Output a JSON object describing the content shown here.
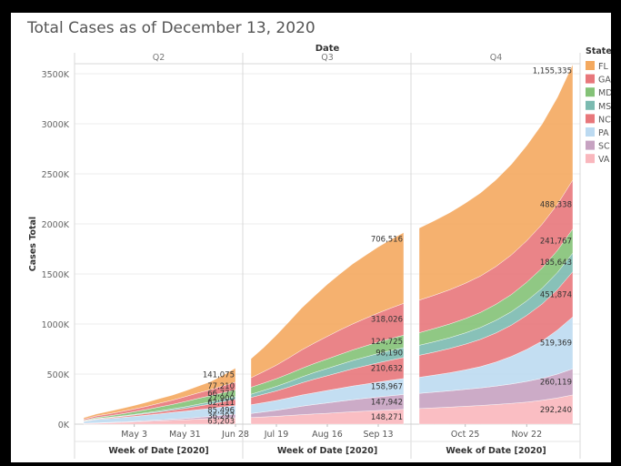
{
  "title": "Total Cases as of December 13, 2020",
  "chart_data": {
    "type": "area",
    "title": "Total Cases as of December 13, 2020",
    "column_header": "Date",
    "ylabel": "Cases Total",
    "ylim": [
      0,
      3600000
    ],
    "y_ticks": [
      0,
      500000,
      1000000,
      1500000,
      2000000,
      2500000,
      3000000,
      3500000
    ],
    "y_tick_labels": [
      "0K",
      "500K",
      "1000K",
      "1500K",
      "2000K",
      "2500K",
      "3000K",
      "3500K"
    ],
    "legend_title": "State",
    "legend_position": "right",
    "stacking": "stacked, VA at bottom, FL on top",
    "states": [
      {
        "name": "FL",
        "color": "#f4a95f"
      },
      {
        "name": "GA",
        "color": "#e8777b"
      },
      {
        "name": "MD",
        "color": "#84c277"
      },
      {
        "name": "MS",
        "color": "#7bbab0"
      },
      {
        "name": "NC",
        "color": "#e8777b"
      },
      {
        "name": "PA",
        "color": "#bcdaf1"
      },
      {
        "name": "SC",
        "color": "#c6a2c1"
      },
      {
        "name": "VA",
        "color": "#f9b7bd"
      }
    ],
    "panels": [
      {
        "quarter": "Q2",
        "xlabel": "Week of Date [2020]",
        "x_tick_labels": [
          "May 3",
          "May 31",
          "Jun 28"
        ],
        "weeks": [
          "Apr 5",
          "Apr 12",
          "Apr 19",
          "Apr 26",
          "May 3",
          "May 10",
          "May 17",
          "May 24",
          "May 31",
          "Jun 7",
          "Jun 14",
          "Jun 21",
          "Jun 28"
        ],
        "x_tick_weeks": [
          4,
          8,
          12
        ],
        "series": {
          "VA": [
            5000,
            9000,
            13000,
            17000,
            21000,
            27000,
            32000,
            38000,
            43000,
            50000,
            55000,
            60000,
            63203
          ],
          "SC": [
            2500,
            4000,
            4500,
            5500,
            6500,
            8000,
            9000,
            11000,
            13000,
            17000,
            22000,
            30000,
            36297
          ],
          "PA": [
            18000,
            33000,
            38000,
            44000,
            50000,
            55000,
            62000,
            68000,
            73000,
            77000,
            79000,
            82000,
            85496
          ],
          "NC": [
            3500,
            6000,
            8000,
            10000,
            13000,
            16000,
            19000,
            23000,
            28000,
            35000,
            44000,
            53000,
            62111
          ],
          "MS": [
            2500,
            3500,
            4300,
            5500,
            7000,
            8500,
            10500,
            12500,
            15500,
            18000,
            21000,
            24000,
            27900
          ],
          "MD": [
            6000,
            10000,
            15000,
            20000,
            26000,
            32000,
            39000,
            44000,
            52000,
            58000,
            62000,
            65000,
            66777
          ],
          "GA": [
            12000,
            16000,
            20000,
            24000,
            28000,
            32000,
            38000,
            43000,
            49000,
            55000,
            60000,
            68000,
            77210
          ],
          "FL": [
            14000,
            19000,
            25000,
            30000,
            35000,
            41000,
            46000,
            50000,
            57000,
            67000,
            80000,
            105000,
            141075
          ]
        },
        "end_labels": [
          {
            "state": "FL",
            "text": "141,075"
          },
          {
            "state": "GA",
            "text": "77,210"
          },
          {
            "state": "MD",
            "text": "66,777"
          },
          {
            "state": "NC",
            "text": "62,111"
          },
          {
            "state": "MS",
            "text": "27,900"
          },
          {
            "state": "PA",
            "text": "85,496"
          },
          {
            "state": "SC",
            "text": "36,297"
          },
          {
            "state": "VA",
            "text": "63,203"
          }
        ]
      },
      {
        "quarter": "Q3",
        "xlabel": "Week of Date [2020]",
        "x_tick_labels": [
          "Jul 19",
          "Aug 16",
          "Sep 13"
        ],
        "weeks": [
          "Jul 5",
          "Jul 12",
          "Jul 19",
          "Jul 26",
          "Aug 2",
          "Aug 9",
          "Aug 16",
          "Aug 23",
          "Aug 30",
          "Sep 6",
          "Sep 13",
          "Sep 20",
          "Sep 27"
        ],
        "x_tick_weeks": [
          2,
          6,
          10
        ],
        "series": {
          "VA": [
            66000,
            72000,
            78000,
            86000,
            95000,
            102000,
            108000,
            116000,
            124000,
            130000,
            136000,
            142000,
            148271
          ],
          "SC": [
            40000,
            50000,
            60000,
            72000,
            84000,
            94000,
            104000,
            112000,
            120000,
            128000,
            136000,
            142000,
            147942
          ],
          "PA": [
            88000,
            93000,
            98000,
            105000,
            112000,
            118000,
            124000,
            130000,
            137000,
            142000,
            148000,
            154000,
            158967
          ],
          "NC": [
            72000,
            84000,
            96000,
            108000,
            122000,
            136000,
            148000,
            160000,
            172000,
            183000,
            193000,
            202000,
            210632
          ],
          "MS": [
            32000,
            38000,
            45000,
            52000,
            59000,
            66000,
            72000,
            78000,
            83000,
            88000,
            92000,
            95000,
            98190
          ],
          "MD": [
            70000,
            73000,
            77000,
            81000,
            85000,
            90000,
            95000,
            100000,
            105000,
            110000,
            115000,
            120000,
            124725
          ],
          "GA": [
            95000,
            115000,
            135000,
            160000,
            185000,
            205000,
            225000,
            245000,
            260000,
            275000,
            290000,
            305000,
            318026
          ],
          "FL": [
            190000,
            240000,
            300000,
            360000,
            420000,
            470000,
            520000,
            560000,
            600000,
            630000,
            660000,
            685000,
            706516
          ]
        },
        "end_labels": [
          {
            "state": "FL",
            "text": "706,516"
          },
          {
            "state": "GA",
            "text": "318,026"
          },
          {
            "state": "MD",
            "text": "124,725"
          },
          {
            "state": "MS",
            "text": "98,190"
          },
          {
            "state": "NC",
            "text": "210,632"
          },
          {
            "state": "PA",
            "text": "158,967"
          },
          {
            "state": "SC",
            "text": "147,942"
          },
          {
            "state": "VA",
            "text": "148,271"
          }
        ]
      },
      {
        "quarter": "Q4",
        "xlabel": "Week of Date [2020]",
        "x_tick_labels": [
          "Oct 25",
          "Nov 22"
        ],
        "weeks": [
          "Oct 4",
          "Oct 11",
          "Oct 18",
          "Oct 25",
          "Nov 1",
          "Nov 8",
          "Nov 15",
          "Nov 22",
          "Nov 29",
          "Dec 6",
          "Dec 13"
        ],
        "x_tick_weeks": [
          3,
          7
        ],
        "series": {
          "VA": [
            155000,
            163000,
            170000,
            178000,
            186000,
            196000,
            207000,
            220000,
            238000,
            262000,
            292240
          ],
          "SC": [
            152000,
            157000,
            163000,
            169000,
            176000,
            184000,
            194000,
            206000,
            220000,
            238000,
            260119
          ],
          "PA": [
            160000,
            170000,
            181000,
            195000,
            213000,
            240000,
            275000,
            320000,
            372000,
            440000,
            519369
          ],
          "NC": [
            220000,
            230000,
            242000,
            256000,
            272000,
            291000,
            313000,
            340000,
            370000,
            405000,
            451874
          ],
          "MS": [
            100000,
            104000,
            108000,
            113000,
            119000,
            126000,
            134000,
            145000,
            157000,
            170000,
            185643
          ],
          "MD": [
            126000,
            131000,
            137000,
            143000,
            150000,
            160000,
            172000,
            186000,
            202000,
            220000,
            241767
          ],
          "GA": [
            325000,
            333000,
            342000,
            352000,
            364000,
            378000,
            395000,
            415000,
            437000,
            460000,
            488338
          ],
          "FL": [
            720000,
            745000,
            770000,
            800000,
            830000,
            865000,
            905000,
            950000,
            1000000,
            1070000,
            1155335
          ]
        },
        "end_labels": [
          {
            "state": "FL",
            "text": "1,155,335"
          },
          {
            "state": "GA",
            "text": "488,338"
          },
          {
            "state": "MD",
            "text": "241,767"
          },
          {
            "state": "MS",
            "text": "185,643"
          },
          {
            "state": "NC",
            "text": "451,874"
          },
          {
            "state": "PA",
            "text": "519,369"
          },
          {
            "state": "SC",
            "text": "260,119"
          },
          {
            "state": "VA",
            "text": "292,240"
          }
        ]
      }
    ]
  }
}
